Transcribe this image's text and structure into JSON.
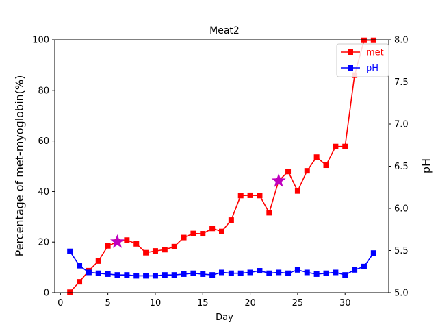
{
  "chart_data": {
    "type": "line",
    "title": "Meat2",
    "xlabel": "Day",
    "ylabel": "Percentage of met-myoglobin(%)",
    "ylabel_right": "pH",
    "xlim": [
      -0.6,
      34.6
    ],
    "ylim": [
      0,
      100
    ],
    "ylim_right": [
      5.0,
      8.0
    ],
    "xticks": [
      0,
      5,
      10,
      15,
      20,
      25,
      30
    ],
    "yticks": [
      0,
      20,
      40,
      60,
      80,
      100
    ],
    "yticks_right": [
      "5.0",
      "5.5",
      "6.0",
      "6.5",
      "7.0",
      "7.5",
      "8.0"
    ],
    "legend": {
      "position": "top-right"
    },
    "series": [
      {
        "name": "met",
        "axis": "left",
        "color": "#ff0000",
        "marker": "square",
        "x": [
          1,
          2,
          3,
          4,
          5,
          6,
          7,
          8,
          9,
          10,
          11,
          12,
          13,
          14,
          15,
          16,
          17,
          18,
          19,
          20,
          21,
          22,
          23,
          24,
          25,
          26,
          27,
          28,
          29,
          30,
          31,
          32,
          33
        ],
        "y": [
          0.2,
          4.3,
          8.7,
          12.5,
          18.5,
          20.1,
          20.8,
          19.3,
          15.8,
          16.5,
          17.0,
          18.2,
          21.8,
          23.4,
          23.3,
          25.4,
          24.2,
          28.7,
          38.4,
          38.5,
          38.4,
          31.6,
          44.2,
          47.9,
          40.2,
          48.2,
          53.6,
          50.4,
          57.8,
          57.8,
          86.0,
          99.8,
          99.8
        ]
      },
      {
        "name": "pH",
        "axis": "right",
        "color": "#0000ff",
        "marker": "square",
        "x": [
          1,
          2,
          3,
          4,
          5,
          6,
          7,
          8,
          9,
          10,
          11,
          12,
          13,
          14,
          15,
          16,
          17,
          18,
          19,
          20,
          21,
          22,
          23,
          24,
          25,
          26,
          27,
          28,
          29,
          30,
          31,
          32,
          33
        ],
        "y": [
          5.49,
          5.32,
          5.24,
          5.23,
          5.22,
          5.21,
          5.21,
          5.2,
          5.2,
          5.2,
          5.21,
          5.21,
          5.22,
          5.23,
          5.22,
          5.21,
          5.24,
          5.23,
          5.23,
          5.24,
          5.26,
          5.23,
          5.24,
          5.23,
          5.27,
          5.24,
          5.22,
          5.23,
          5.24,
          5.21,
          5.27,
          5.31,
          5.47
        ]
      }
    ],
    "highlights": [
      {
        "x": 6,
        "y": 20.1,
        "color": "#bf00bf",
        "marker": "star"
      },
      {
        "x": 23,
        "y": 44.2,
        "color": "#bf00bf",
        "marker": "star"
      }
    ]
  }
}
